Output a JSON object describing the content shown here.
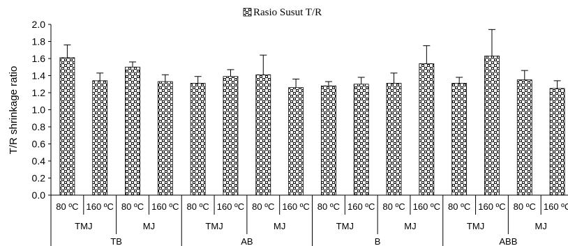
{
  "chart_data": {
    "type": "bar",
    "legend": {
      "label": "Rasio Susut T/R",
      "position": "top-center"
    },
    "ylabel": "T/R shrinkage ratio",
    "ylim": [
      0,
      2.0
    ],
    "ytick_step": 0.2,
    "yticks": [
      "0.0",
      "0.2",
      "0.4",
      "0.6",
      "0.8",
      "1.0",
      "1.2",
      "1.4",
      "1.6",
      "1.8",
      "2.0"
    ],
    "grid": false,
    "categories": [
      "80 ºC",
      "160 ºC",
      "80 ºC",
      "160 ºC",
      "80 ºC",
      "160 ºC",
      "80 ºC",
      "160 ºC",
      "80 ºC",
      "160 ºC",
      "80 ºC",
      "160 ºC",
      "80 ºC",
      "160 ºC",
      "80 ºC",
      "160 ºC"
    ],
    "group_level_2": [
      "TMJ",
      "MJ",
      "TMJ",
      "MJ",
      "TMJ",
      "MJ",
      "TMJ",
      "MJ"
    ],
    "group_level_3": [
      "TB",
      "AB",
      "B",
      "ABB"
    ],
    "values": [
      1.61,
      1.34,
      1.5,
      1.33,
      1.31,
      1.39,
      1.41,
      1.26,
      1.28,
      1.3,
      1.31,
      1.54,
      1.31,
      1.63,
      1.35,
      1.25
    ],
    "errors": [
      0.15,
      0.09,
      0.06,
      0.08,
      0.08,
      0.08,
      0.23,
      0.1,
      0.05,
      0.08,
      0.12,
      0.21,
      0.07,
      0.31,
      0.11,
      0.09
    ],
    "bar_pattern": "checkerboard-dots"
  }
}
